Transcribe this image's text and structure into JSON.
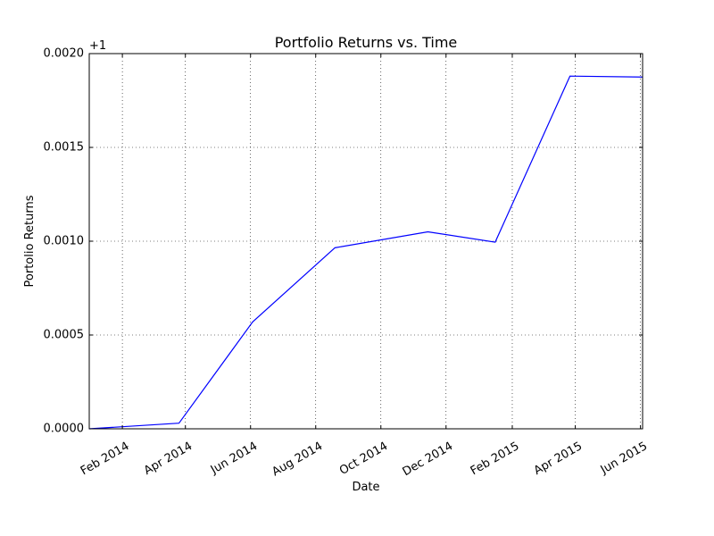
{
  "chart_data": {
    "type": "line",
    "title": "Portfolio Returns vs. Time",
    "xlabel": "Date",
    "ylabel": "Portolio Returns",
    "y_offset_label": "+1",
    "y_offset": 1,
    "xlim": [
      "2014-01-01",
      "2015-06-03"
    ],
    "ylim": [
      0.0,
      0.002
    ],
    "grid": true,
    "x_ticks": [
      {
        "date": "2014-02-01",
        "label": "Feb 2014"
      },
      {
        "date": "2014-04-01",
        "label": "Apr 2014"
      },
      {
        "date": "2014-06-01",
        "label": "Jun 2014"
      },
      {
        "date": "2014-08-01",
        "label": "Aug 2014"
      },
      {
        "date": "2014-10-01",
        "label": "Oct 2014"
      },
      {
        "date": "2014-12-01",
        "label": "Dec 2014"
      },
      {
        "date": "2015-02-01",
        "label": "Feb 2015"
      },
      {
        "date": "2015-04-01",
        "label": "Apr 2015"
      },
      {
        "date": "2015-06-01",
        "label": "Jun 2015"
      }
    ],
    "y_ticks": [
      {
        "value": 0.0,
        "label": "0.0000"
      },
      {
        "value": 0.0005,
        "label": "0.0005"
      },
      {
        "value": 0.001,
        "label": "0.0010"
      },
      {
        "value": 0.0015,
        "label": "0.0015"
      },
      {
        "value": 0.002,
        "label": "0.0020"
      }
    ],
    "series": [
      {
        "color": "#0000ff",
        "points": [
          {
            "x": "2014-01-01",
            "y": 0.0
          },
          {
            "x": "2014-03-26",
            "y": 3e-05
          },
          {
            "x": "2014-06-03",
            "y": 0.00057
          },
          {
            "x": "2014-08-19",
            "y": 0.000965
          },
          {
            "x": "2014-11-14",
            "y": 0.00105
          },
          {
            "x": "2015-01-16",
            "y": 0.000995
          },
          {
            "x": "2015-03-27",
            "y": 0.00188
          },
          {
            "x": "2015-06-03",
            "y": 0.001875
          }
        ]
      }
    ]
  }
}
